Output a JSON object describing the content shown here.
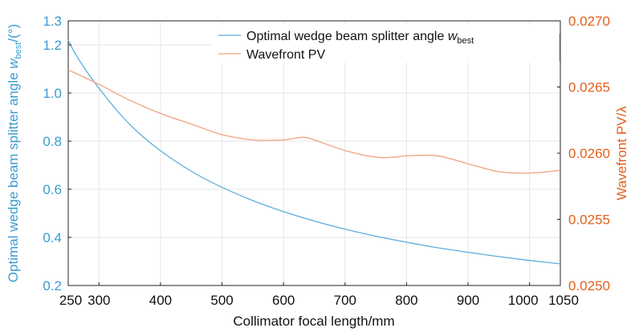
{
  "chart_data": {
    "type": "line",
    "xlabel": "Collimator focal length/mm",
    "ylabel_left_main": "Optimal wedge beam splitter angle ",
    "ylabel_left_var": "w",
    "ylabel_left_sub": "best",
    "ylabel_left_unit": "/(°)",
    "ylabel_right": "Wavefront PV/λ",
    "xlim": [
      250,
      1050
    ],
    "ylim_left": [
      0.2,
      1.3
    ],
    "ylim_right": [
      0.025,
      0.027
    ],
    "x_ticks": [
      250,
      300,
      400,
      500,
      600,
      700,
      800,
      900,
      1000,
      1050
    ],
    "y_left_ticks": [
      "0.2",
      "0.4",
      "0.6",
      "0.8",
      "1.0",
      "1.2",
      "1.3"
    ],
    "y_right_ticks": [
      "0.0250",
      "0.0255",
      "0.0260",
      "0.0265",
      "0.0270"
    ],
    "grid": true,
    "legend_position": "top-right",
    "series": [
      {
        "name": "Optimal wedge beam splitter angle",
        "name_var": "w",
        "name_sub": "best",
        "axis": "left",
        "color": "#5aaedb",
        "x": [
          250,
          260,
          280,
          300,
          330,
          360,
          400,
          450,
          500,
          550,
          600,
          650,
          700,
          750,
          800,
          850,
          900,
          950,
          1000,
          1050
        ],
        "y": [
          1.22,
          1.17,
          1.09,
          1.02,
          0.925,
          0.845,
          0.76,
          0.675,
          0.608,
          0.553,
          0.507,
          0.468,
          0.434,
          0.405,
          0.38,
          0.357,
          0.338,
          0.32,
          0.304,
          0.29
        ]
      },
      {
        "name": "Wavefront PV",
        "axis": "right",
        "color": "#f0a382",
        "x": [
          250,
          300,
          350,
          400,
          450,
          500,
          550,
          600,
          630,
          650,
          700,
          750,
          780,
          800,
          850,
          900,
          950,
          1000,
          1050
        ],
        "y": [
          0.02663,
          0.02652,
          0.0264,
          0.0263,
          0.02622,
          0.02614,
          0.0261,
          0.0261,
          0.02612,
          0.0261,
          0.02602,
          0.02597,
          0.02597,
          0.02598,
          0.02598,
          0.02592,
          0.02586,
          0.02585,
          0.02587
        ]
      }
    ]
  }
}
